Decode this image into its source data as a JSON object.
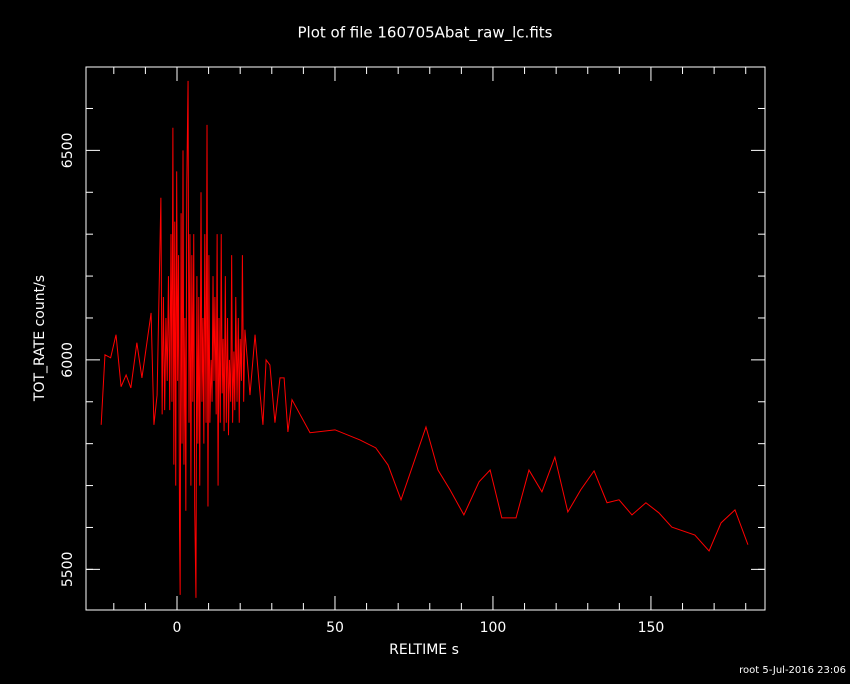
{
  "chart_data": {
    "type": "line",
    "title": "Plot of file 160705Abat_raw_lc.fits",
    "x_label": "RELTIME  s",
    "y_label": "TOT_RATE  count/s",
    "footer": "root  5-Jul-2016 23:06",
    "xlim": [
      -28.8,
      186.1
    ],
    "ylim": [
      5403,
      6699
    ],
    "xticks": [
      0,
      50,
      100,
      150
    ],
    "yticks": [
      5500,
      6000,
      6500
    ],
    "xminorticks": [
      -20,
      -10,
      10,
      20,
      30,
      40,
      60,
      70,
      80,
      90,
      110,
      120,
      130,
      140,
      160,
      170,
      180
    ],
    "yminorticks": [
      5500,
      5600,
      5700,
      5800,
      5900,
      6100,
      6200,
      6300,
      6400,
      6600
    ],
    "series": [
      {
        "color": "#ff0000",
        "x": [
          -24,
          -22.8,
          -21,
          -19.3,
          -17.7,
          -16.1,
          -14.6,
          -12.7,
          -11.1,
          -8.2,
          -7.3,
          -6.3,
          -5.1,
          -4.7,
          -4.3,
          -3.9,
          -3.5,
          -3.1,
          -2.7,
          -2.3,
          -1.9,
          -1.6,
          -1.3,
          -1.0,
          -0.7,
          -0.4,
          -0.1,
          0.2,
          0.5,
          0.8,
          1.0,
          1.3,
          1.6,
          1.9,
          2.2,
          2.5,
          2.8,
          3.1,
          3.5,
          3.8,
          4.1,
          4.4,
          4.7,
          5.0,
          5.3,
          5.6,
          6.0,
          6.3,
          6.6,
          6.9,
          7.2,
          7.6,
          7.9,
          8.2,
          8.5,
          8.8,
          9.2,
          9.5,
          9.8,
          10.1,
          10.4,
          10.8,
          11.1,
          11.4,
          11.7,
          12.0,
          12.4,
          12.7,
          13.0,
          13.3,
          13.7,
          14.0,
          14.3,
          14.6,
          14.9,
          15.3,
          15.6,
          16.0,
          16.3,
          16.6,
          17.0,
          17.3,
          17.6,
          18.0,
          18.3,
          18.6,
          19.0,
          19.4,
          19.7,
          20.0,
          20.4,
          20.7,
          21.1,
          21.5,
          23.1,
          24.7,
          25.9,
          27.2,
          28.2,
          29.4,
          31,
          32.6,
          33.9,
          35.1,
          36.4,
          42.1,
          50,
          57.9,
          62.9,
          66.8,
          70.9,
          78.8,
          82.6,
          86.4,
          90.8,
          95.6,
          99.1,
          102.8,
          107.3,
          111.4,
          115.5,
          119.6,
          123.7,
          127.8,
          132,
          136.1,
          139.9,
          144,
          148.4,
          152.5,
          156.6,
          163.9,
          168.4,
          172.2,
          176.6,
          180.7
        ],
        "values": [
          5845,
          6012,
          6005,
          6060,
          5936,
          5964,
          5933,
          6041,
          5957,
          6112,
          5845,
          5916,
          6387,
          5870,
          6150,
          5880,
          6100,
          5950,
          6200,
          5880,
          6300,
          5900,
          6554,
          5750,
          6330,
          5700,
          6450,
          5950,
          6250,
          5600,
          5439,
          6350,
          5800,
          6500,
          5750,
          6100,
          5640,
          6420,
          6666,
          5850,
          6300,
          5700,
          6250,
          5900,
          6300,
          5650,
          5432,
          6200,
          5800,
          6150,
          5700,
          6400,
          5900,
          6100,
          5800,
          6300,
          5850,
          6561,
          5650,
          6250,
          5850,
          6000,
          5900,
          6200,
          5950,
          6150,
          5870,
          6300,
          5700,
          6100,
          5850,
          6300,
          5920,
          6050,
          5830,
          6200,
          5850,
          6100,
          5820,
          6000,
          5900,
          6250,
          5850,
          6020,
          5880,
          6150,
          5900,
          6100,
          5850,
          6050,
          5950,
          6250,
          5900,
          6072,
          5916,
          6060,
          5952,
          5845,
          6000,
          5988,
          5850,
          5957,
          5957,
          5828,
          5905,
          5826,
          5833,
          5809,
          5790,
          5749,
          5666,
          5840,
          5737,
          5690,
          5630,
          5709,
          5737,
          5623,
          5623,
          5737,
          5685,
          5768,
          5637,
          5690,
          5735,
          5659,
          5666,
          5630,
          5659,
          5635,
          5601,
          5582,
          5544,
          5611,
          5642,
          5559
        ]
      }
    ]
  }
}
